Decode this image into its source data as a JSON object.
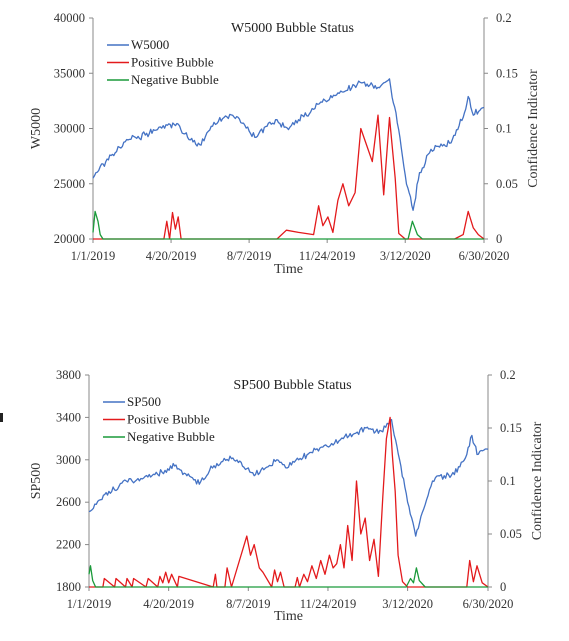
{
  "chart_data": [
    {
      "type": "line",
      "title": "W5000 Bubble Status",
      "xlabel": "Time",
      "ylabel": "W5000",
      "y2label": "Confidence Indicator",
      "xticks": [
        "1/1/2019",
        "4/20/2019",
        "8/7/2019",
        "11/24/2019",
        "3/12/2020",
        "6/30/2020"
      ],
      "ylim": [
        20000,
        40000
      ],
      "yticks": [
        "20000",
        "25000",
        "30000",
        "35000",
        "40000"
      ],
      "y2lim": [
        0,
        0.2
      ],
      "y2ticks": [
        "0",
        "0.05",
        "0.1",
        "0.15",
        "0.2"
      ],
      "legend_position": "top-left",
      "colors": {
        "index": "#4472c4",
        "positive": "#e31a1c",
        "negative": "#1a9a3a"
      },
      "series": [
        {
          "name": "W5000",
          "axis": "left",
          "x": [
            "2019-01-01",
            "2019-01-15",
            "2019-02-01",
            "2019-02-15",
            "2019-03-01",
            "2019-03-15",
            "2019-04-01",
            "2019-04-15",
            "2019-04-30",
            "2019-05-15",
            "2019-06-01",
            "2019-06-15",
            "2019-07-01",
            "2019-07-15",
            "2019-08-01",
            "2019-08-15",
            "2019-09-01",
            "2019-09-15",
            "2019-10-01",
            "2019-10-15",
            "2019-11-01",
            "2019-11-15",
            "2019-12-01",
            "2019-12-15",
            "2020-01-01",
            "2020-01-15",
            "2020-02-01",
            "2020-02-19",
            "2020-03-01",
            "2020-03-12",
            "2020-03-23",
            "2020-04-01",
            "2020-04-15",
            "2020-05-01",
            "2020-05-15",
            "2020-06-01",
            "2020-06-08",
            "2020-06-15",
            "2020-06-30"
          ],
          "values": [
            25500,
            26800,
            27800,
            28800,
            29200,
            29400,
            29900,
            30300,
            30400,
            29000,
            28500,
            30200,
            30900,
            31200,
            30300,
            29200,
            30200,
            30800,
            29900,
            30800,
            31500,
            32400,
            32800,
            33300,
            33900,
            34200,
            33600,
            34500,
            30500,
            25800,
            22600,
            26000,
            27800,
            28600,
            28700,
            31000,
            32900,
            31200,
            31900
          ]
        },
        {
          "name": "Positive Bubble",
          "axis": "right",
          "x": [
            "2019-01-01",
            "2019-04-10",
            "2019-04-14",
            "2019-04-18",
            "2019-04-22",
            "2019-04-26",
            "2019-04-30",
            "2019-05-04",
            "2019-06-20",
            "2019-09-15",
            "2019-09-28",
            "2019-10-15",
            "2019-11-05",
            "2019-11-12",
            "2019-11-18",
            "2019-11-25",
            "2019-12-02",
            "2019-12-09",
            "2019-12-16",
            "2019-12-24",
            "2020-01-02",
            "2020-01-10",
            "2020-01-18",
            "2020-01-26",
            "2020-02-03",
            "2020-02-11",
            "2020-02-19",
            "2020-02-27",
            "2020-03-03",
            "2020-03-12",
            "2020-04-01",
            "2020-05-20",
            "2020-06-01",
            "2020-06-08",
            "2020-06-15",
            "2020-06-22",
            "2020-06-30"
          ],
          "values": [
            0,
            0,
            0.016,
            0,
            0.024,
            0.009,
            0.02,
            0,
            0,
            0,
            0.008,
            0.006,
            0.004,
            0.03,
            0.012,
            0.02,
            0.006,
            0.035,
            0.05,
            0.03,
            0.042,
            0.1,
            0.085,
            0.07,
            0.112,
            0.04,
            0.11,
            0.055,
            0.005,
            0,
            0,
            0,
            0.004,
            0.025,
            0.01,
            0.004,
            0
          ]
        },
        {
          "name": "Negative Bubble",
          "axis": "right",
          "x": [
            "2019-01-01",
            "2019-01-04",
            "2019-01-08",
            "2019-01-11",
            "2019-01-15",
            "2019-06-30",
            "2020-03-06",
            "2020-03-16",
            "2020-03-22",
            "2020-03-29",
            "2020-04-05",
            "2020-06-30"
          ],
          "values": [
            0.006,
            0.025,
            0.016,
            0.004,
            0,
            0,
            0,
            0,
            0.016,
            0.004,
            0,
            0
          ]
        }
      ]
    },
    {
      "type": "line",
      "title": "SP500 Bubble Status",
      "xlabel": "Time",
      "ylabel": "SP500",
      "y2label": "Confidence Indicator",
      "xticks": [
        "1/1/2019",
        "4/20/2019",
        "8/7/2019",
        "11/24/2019",
        "3/12/2020",
        "6/30/2020"
      ],
      "ylim": [
        1800,
        3800
      ],
      "yticks": [
        "1800",
        "2200",
        "2600",
        "3000",
        "3400",
        "3800"
      ],
      "y2lim": [
        0,
        0.2
      ],
      "y2ticks": [
        "0",
        "0.05",
        "0.1",
        "0.15",
        "0.2"
      ],
      "legend_position": "top-left",
      "colors": {
        "index": "#4472c4",
        "positive": "#e31a1c",
        "negative": "#1a9a3a"
      },
      "series": [
        {
          "name": "SP500",
          "axis": "left",
          "x": [
            "2019-01-01",
            "2019-01-15",
            "2019-02-01",
            "2019-02-15",
            "2019-03-01",
            "2019-03-15",
            "2019-04-01",
            "2019-04-15",
            "2019-04-30",
            "2019-05-15",
            "2019-06-01",
            "2019-06-15",
            "2019-07-01",
            "2019-07-15",
            "2019-08-01",
            "2019-08-15",
            "2019-09-01",
            "2019-09-15",
            "2019-10-01",
            "2019-10-15",
            "2019-11-01",
            "2019-11-15",
            "2019-12-01",
            "2019-12-15",
            "2020-01-01",
            "2020-01-15",
            "2020-02-01",
            "2020-02-19",
            "2020-03-01",
            "2020-03-12",
            "2020-03-23",
            "2020-04-01",
            "2020-04-15",
            "2020-05-01",
            "2020-05-15",
            "2020-06-01",
            "2020-06-08",
            "2020-06-15",
            "2020-06-30"
          ],
          "values": [
            2510,
            2620,
            2700,
            2780,
            2800,
            2820,
            2860,
            2900,
            2950,
            2850,
            2770,
            2900,
            2980,
            3010,
            2930,
            2850,
            2930,
            3000,
            2930,
            3000,
            3070,
            3120,
            3140,
            3200,
            3250,
            3300,
            3250,
            3380,
            3000,
            2600,
            2280,
            2500,
            2800,
            2850,
            2860,
            3050,
            3230,
            3050,
            3100
          ]
        },
        {
          "name": "Positive Bubble",
          "axis": "right",
          "x": [
            "2019-01-01",
            "2019-01-20",
            "2019-01-22",
            "2019-02-05",
            "2019-02-07",
            "2019-02-20",
            "2019-02-22",
            "2019-03-01",
            "2019-03-03",
            "2019-03-20",
            "2019-03-23",
            "2019-04-05",
            "2019-04-08",
            "2019-04-12",
            "2019-04-16",
            "2019-04-20",
            "2019-04-24",
            "2019-05-02",
            "2019-05-04",
            "2019-06-20",
            "2019-06-23",
            "2019-06-25",
            "2019-07-06",
            "2019-07-09",
            "2019-07-15",
            "2019-07-22",
            "2019-08-05",
            "2019-08-10",
            "2019-08-15",
            "2019-08-22",
            "2019-08-27",
            "2019-09-08",
            "2019-09-12",
            "2019-09-16",
            "2019-09-20",
            "2019-09-25",
            "2019-10-10",
            "2019-10-13",
            "2019-10-16",
            "2019-10-22",
            "2019-10-27",
            "2019-11-02",
            "2019-11-08",
            "2019-11-14",
            "2019-11-20",
            "2019-11-26",
            "2019-12-01",
            "2019-12-06",
            "2019-12-11",
            "2019-12-16",
            "2019-12-21",
            "2019-12-27",
            "2020-01-02",
            "2020-01-08",
            "2020-01-14",
            "2020-01-20",
            "2020-01-26",
            "2020-02-01",
            "2020-02-07",
            "2020-02-12",
            "2020-02-17",
            "2020-02-20",
            "2020-02-24",
            "2020-02-28",
            "2020-03-05",
            "2020-03-12",
            "2020-05-15",
            "2020-06-01",
            "2020-06-05",
            "2020-06-10",
            "2020-06-15",
            "2020-06-22",
            "2020-06-30"
          ],
          "values": [
            0,
            0,
            0.008,
            0,
            0.008,
            0,
            0.008,
            0,
            0.008,
            0,
            0.008,
            0,
            0.01,
            0.004,
            0.014,
            0.004,
            0.012,
            0,
            0.01,
            0,
            0.012,
            0,
            0,
            0.018,
            0,
            0.016,
            0.048,
            0.03,
            0.04,
            0.018,
            0.014,
            0,
            0.016,
            0.005,
            0.014,
            0,
            0,
            0.009,
            0,
            0.012,
            0.005,
            0.02,
            0.008,
            0.025,
            0.012,
            0.03,
            0.018,
            0.022,
            0.04,
            0.018,
            0.058,
            0.025,
            0.1,
            0.05,
            0.065,
            0.025,
            0.045,
            0.01,
            0.085,
            0.14,
            0.16,
            0.125,
            0.09,
            0.03,
            0.005,
            0,
            0,
            0,
            0.025,
            0.005,
            0.02,
            0.004,
            0
          ]
        },
        {
          "name": "Negative Bubble",
          "axis": "right",
          "x": [
            "2019-01-01",
            "2019-01-03",
            "2019-01-06",
            "2019-01-10",
            "2019-06-30",
            "2020-03-10",
            "2020-03-16",
            "2020-03-20",
            "2020-03-24",
            "2020-03-28",
            "2020-04-05",
            "2020-06-30"
          ],
          "values": [
            0.012,
            0.02,
            0.006,
            0,
            0,
            0,
            0.008,
            0.004,
            0.018,
            0.006,
            0,
            0
          ]
        }
      ]
    }
  ]
}
